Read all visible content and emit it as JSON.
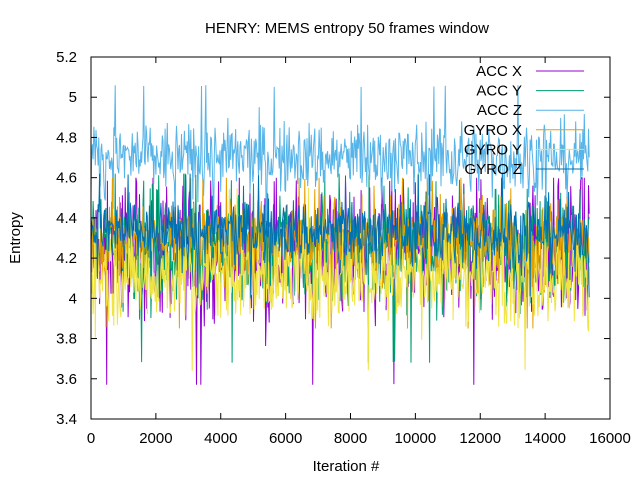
{
  "chart_data": {
    "type": "line",
    "title": "HENRY: MEMS entropy 50 frames window",
    "xlabel": "Iteration #",
    "ylabel": "Entropy",
    "xlim": [
      0,
      16000
    ],
    "ylim": [
      3.4,
      5.2
    ],
    "xticks": [
      0,
      2000,
      4000,
      6000,
      8000,
      10000,
      12000,
      14000,
      16000
    ],
    "yticks": [
      3.4,
      3.6,
      3.8,
      4,
      4.2,
      4.4,
      4.6,
      4.8,
      5,
      5.2
    ],
    "xtick_labels": [
      "0",
      "2000",
      "4000",
      "6000",
      "8000",
      "10000",
      "12000",
      "14000",
      "16000"
    ],
    "ytick_labels": [
      "3.4",
      "3.6",
      "3.8",
      "4",
      "4.2",
      "4.4",
      "4.6",
      "4.8",
      "5",
      "5.2"
    ],
    "grid": false,
    "legend_position": "top-right",
    "x_max_data": 15360,
    "series": [
      {
        "name": "ACC X",
        "color": "#9400d3",
        "mean": 4.24,
        "range": [
          3.57,
          4.6
        ]
      },
      {
        "name": "ACC Y",
        "color": "#009e73",
        "mean": 4.26,
        "range": [
          3.68,
          4.62
        ]
      },
      {
        "name": "ACC Z",
        "color": "#56b4e9",
        "mean": 4.7,
        "range": [
          4.35,
          5.06
        ]
      },
      {
        "name": "GYRO X",
        "color": "#e69f00",
        "mean": 4.28,
        "range": [
          3.85,
          4.6
        ]
      },
      {
        "name": "GYRO Y",
        "color": "#f0e442",
        "mean": 4.12,
        "range": [
          3.64,
          4.55
        ]
      },
      {
        "name": "GYRO Z",
        "color": "#0072b2",
        "mean": 4.33,
        "range": [
          4.0,
          4.62
        ]
      }
    ]
  }
}
